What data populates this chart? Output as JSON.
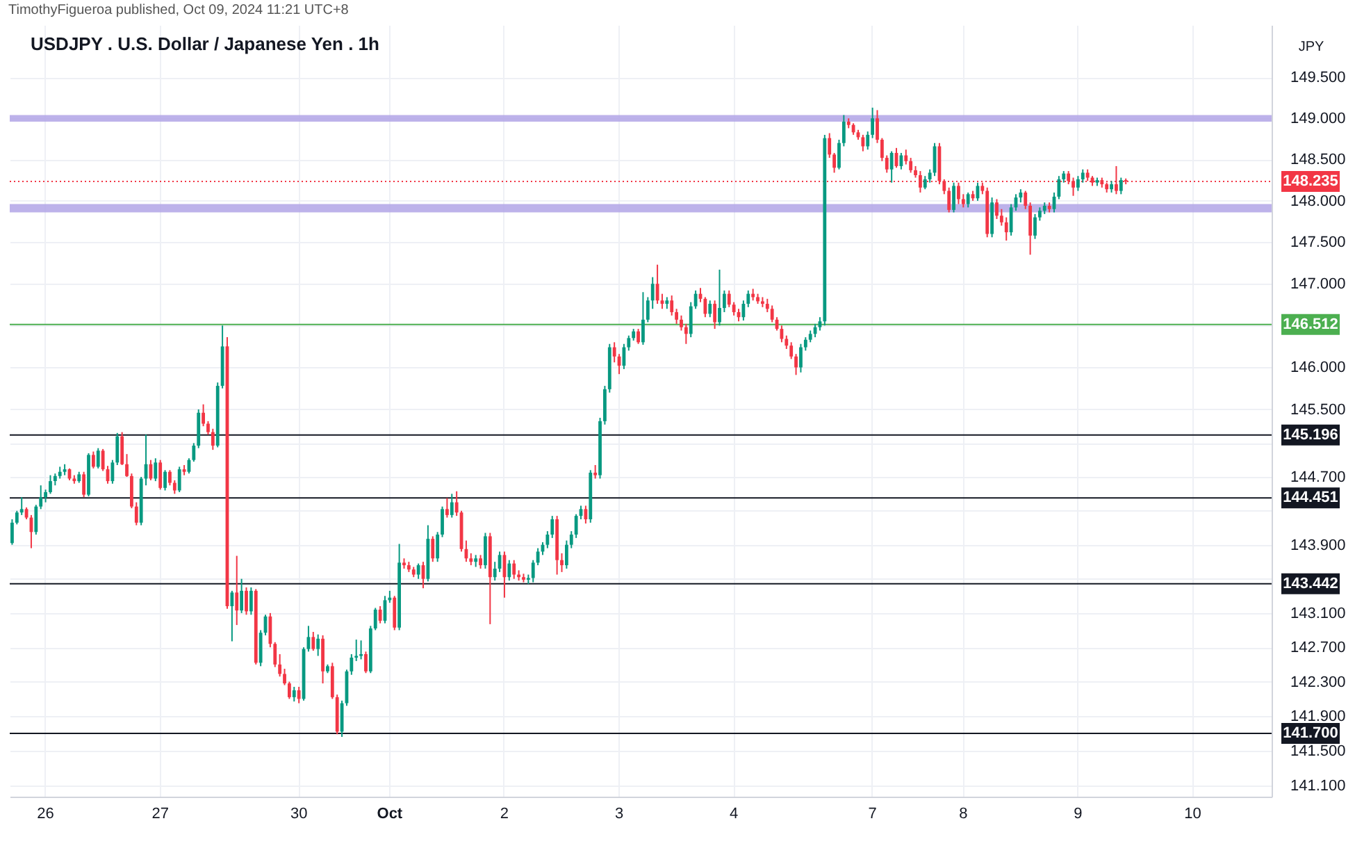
{
  "chart_data": {
    "type": "candlestick",
    "title": "USDJPY . U.S. Dollar / Japanese Yen . 1h",
    "annotations": [
      "TimothyFigueroa published, Oct 09, 2024 11:21 UTC+8"
    ],
    "ylabel": "JPY",
    "categories": [
      null,
      null,
      null,
      null,
      null,
      null,
      null,
      "26",
      null,
      null,
      null,
      null,
      null,
      null,
      null,
      null,
      null,
      null,
      null,
      null,
      null,
      null,
      null,
      null,
      null,
      null,
      null,
      null,
      null,
      null,
      null,
      "27",
      null,
      null,
      null,
      null,
      null,
      null,
      null,
      null,
      null,
      null,
      null,
      null,
      null,
      null,
      null,
      null,
      null,
      null,
      null,
      null,
      null,
      null,
      null,
      null,
      null,
      null,
      null,
      null,
      "30",
      null,
      null,
      null,
      null,
      null,
      null,
      null,
      null,
      null,
      null,
      null,
      null,
      null,
      null,
      null,
      null,
      null,
      null,
      "Oct",
      null,
      null,
      null,
      null,
      null,
      null,
      null,
      null,
      null,
      null,
      null,
      null,
      null,
      null,
      null,
      null,
      null,
      null,
      null,
      null,
      null,
      null,
      null,
      "2",
      null,
      null,
      null,
      null,
      null,
      null,
      null,
      null,
      null,
      null,
      null,
      null,
      null,
      null,
      null,
      null,
      null,
      null,
      null,
      null,
      null,
      null,
      null,
      "3",
      null,
      null,
      null,
      null,
      null,
      null,
      null,
      null,
      null,
      null,
      null,
      null,
      null,
      null,
      null,
      null,
      null,
      null,
      null,
      null,
      null,
      null,
      null,
      "4",
      null,
      null,
      null,
      null,
      null,
      null,
      null,
      null,
      null,
      null,
      null,
      null,
      null,
      null,
      null,
      null,
      null,
      null,
      null,
      null,
      null,
      null,
      null,
      null,
      null,
      null,
      null,
      null,
      "7",
      null,
      null,
      null,
      null,
      null,
      null,
      null,
      null,
      null,
      null,
      null,
      null,
      null,
      null,
      null,
      null,
      null,
      null,
      "8",
      null,
      null,
      null,
      null,
      null,
      null,
      null,
      null,
      null,
      null,
      null,
      null,
      null,
      null,
      null,
      null,
      null,
      null,
      null,
      null,
      null,
      null,
      null,
      "9",
      null,
      null,
      null,
      null,
      null,
      null,
      null,
      null,
      null,
      null,
      null,
      null,
      null,
      null,
      null,
      null,
      null,
      null,
      null,
      null,
      null,
      null,
      null,
      "10",
      null,
      null,
      null,
      null,
      null,
      null,
      null,
      null,
      null,
      null,
      null,
      null,
      null,
      null,
      null,
      null
    ],
    "ohlc": [
      [
        143.92,
        144.2,
        143.9,
        144.16
      ],
      [
        144.16,
        144.3,
        144.14,
        144.28
      ],
      [
        144.28,
        144.46,
        144.25,
        144.32
      ],
      [
        144.32,
        144.34,
        144.2,
        144.22
      ],
      [
        144.22,
        144.25,
        143.86,
        144.05
      ],
      [
        144.05,
        144.37,
        144.02,
        144.35
      ],
      [
        144.35,
        144.6,
        144.32,
        144.46
      ],
      [
        144.46,
        144.55,
        144.4,
        144.52
      ],
      [
        144.52,
        144.72,
        144.5,
        144.65
      ],
      [
        144.65,
        144.74,
        144.6,
        144.71
      ],
      [
        144.71,
        144.82,
        144.68,
        144.76
      ],
      [
        144.76,
        144.85,
        144.72,
        144.79
      ],
      [
        144.79,
        144.8,
        144.66,
        144.68
      ],
      [
        144.68,
        144.72,
        144.62,
        144.65
      ],
      [
        144.65,
        144.76,
        144.63,
        144.73
      ],
      [
        144.73,
        144.76,
        144.46,
        144.49
      ],
      [
        144.49,
        144.98,
        144.47,
        144.96
      ],
      [
        144.96,
        145.0,
        144.8,
        144.82
      ],
      [
        144.82,
        145.04,
        144.8,
        145.01
      ],
      [
        145.01,
        145.03,
        144.77,
        144.79
      ],
      [
        144.79,
        144.83,
        144.62,
        144.65
      ],
      [
        144.65,
        144.9,
        144.62,
        144.87
      ],
      [
        144.87,
        145.22,
        144.84,
        145.18
      ],
      [
        145.18,
        145.23,
        144.84,
        144.85
      ],
      [
        144.85,
        144.97,
        144.7,
        144.71
      ],
      [
        144.71,
        144.74,
        144.33,
        144.35
      ],
      [
        144.35,
        144.4,
        144.13,
        144.16
      ],
      [
        144.16,
        144.7,
        144.13,
        144.68
      ],
      [
        144.68,
        145.2,
        144.6,
        144.85
      ],
      [
        144.85,
        144.9,
        144.66,
        144.68
      ],
      [
        144.68,
        144.92,
        144.65,
        144.87
      ],
      [
        144.87,
        144.9,
        144.55,
        144.57
      ],
      [
        144.57,
        144.78,
        144.54,
        144.76
      ],
      [
        144.76,
        144.78,
        144.6,
        144.63
      ],
      [
        144.63,
        144.66,
        144.5,
        144.54
      ],
      [
        144.54,
        144.82,
        144.52,
        144.79
      ],
      [
        144.79,
        144.84,
        144.72,
        144.76
      ],
      [
        144.76,
        144.92,
        144.74,
        144.9
      ],
      [
        144.9,
        145.1,
        144.88,
        145.07
      ],
      [
        145.07,
        145.5,
        145.04,
        145.46
      ],
      [
        145.46,
        145.56,
        145.3,
        145.33
      ],
      [
        145.33,
        145.36,
        145.2,
        145.23
      ],
      [
        145.23,
        145.27,
        145.02,
        145.07
      ],
      [
        145.07,
        145.82,
        145.05,
        145.78
      ],
      [
        145.78,
        146.5,
        145.75,
        146.25
      ],
      [
        146.25,
        146.36,
        143.15,
        143.18
      ],
      [
        143.18,
        143.36,
        142.77,
        143.34
      ],
      [
        143.34,
        143.77,
        142.96,
        143.13
      ],
      [
        143.13,
        143.5,
        143.1,
        143.36
      ],
      [
        143.36,
        143.4,
        143.08,
        143.12
      ],
      [
        143.12,
        143.4,
        143.08,
        143.36
      ],
      [
        143.36,
        143.38,
        142.5,
        142.52
      ],
      [
        142.52,
        142.9,
        142.48,
        142.87
      ],
      [
        142.87,
        143.08,
        142.84,
        143.06
      ],
      [
        143.06,
        143.1,
        142.7,
        142.74
      ],
      [
        142.74,
        142.76,
        142.47,
        142.5
      ],
      [
        142.5,
        142.62,
        142.36,
        142.39
      ],
      [
        142.39,
        142.45,
        142.26,
        142.28
      ],
      [
        142.28,
        142.3,
        142.1,
        142.12
      ],
      [
        142.12,
        142.24,
        142.07,
        142.2
      ],
      [
        142.2,
        142.24,
        142.05,
        142.1
      ],
      [
        142.1,
        142.7,
        142.08,
        142.68
      ],
      [
        142.68,
        142.95,
        142.65,
        142.82
      ],
      [
        142.82,
        142.88,
        142.66,
        142.68
      ],
      [
        142.68,
        142.85,
        142.6,
        142.8
      ],
      [
        142.8,
        142.84,
        142.28,
        142.42
      ],
      [
        142.42,
        142.5,
        142.4,
        142.48
      ],
      [
        142.48,
        142.52,
        142.1,
        142.12
      ],
      [
        142.12,
        142.15,
        141.69,
        141.72
      ],
      [
        141.72,
        142.08,
        141.66,
        142.05
      ],
      [
        142.05,
        142.44,
        142.02,
        142.42
      ],
      [
        142.42,
        142.62,
        142.38,
        142.58
      ],
      [
        142.58,
        142.79,
        142.54,
        142.6
      ],
      [
        142.6,
        142.78,
        142.56,
        142.62
      ],
      [
        142.62,
        142.65,
        142.4,
        142.42
      ],
      [
        142.42,
        142.95,
        142.4,
        142.92
      ],
      [
        142.92,
        143.16,
        142.9,
        143.14
      ],
      [
        143.14,
        143.18,
        142.98,
        143.01
      ],
      [
        143.01,
        143.3,
        142.98,
        143.25
      ],
      [
        143.25,
        143.36,
        143.22,
        143.28
      ],
      [
        143.28,
        143.3,
        142.9,
        142.93
      ],
      [
        142.93,
        143.91,
        142.9,
        143.69
      ],
      [
        143.69,
        143.74,
        143.62,
        143.66
      ],
      [
        143.66,
        143.7,
        143.58,
        143.61
      ],
      [
        143.61,
        143.64,
        143.52,
        143.55
      ],
      [
        143.55,
        143.68,
        143.5,
        143.66
      ],
      [
        143.66,
        143.7,
        143.39,
        143.5
      ],
      [
        143.5,
        144.13,
        143.47,
        143.97
      ],
      [
        143.97,
        144.0,
        143.7,
        143.74
      ],
      [
        143.74,
        144.05,
        143.7,
        144.02
      ],
      [
        144.02,
        144.35,
        143.99,
        144.32
      ],
      [
        144.32,
        144.45,
        144.22,
        144.25
      ],
      [
        144.25,
        144.5,
        144.22,
        144.4
      ],
      [
        144.4,
        144.53,
        144.24,
        144.28
      ],
      [
        144.28,
        144.3,
        143.82,
        143.85
      ],
      [
        143.85,
        143.95,
        143.7,
        143.74
      ],
      [
        143.74,
        143.8,
        143.66,
        143.7
      ],
      [
        143.7,
        143.78,
        143.64,
        143.74
      ],
      [
        143.74,
        143.78,
        143.62,
        143.66
      ],
      [
        143.66,
        144.04,
        143.62,
        144.0
      ],
      [
        144.0,
        144.04,
        142.97,
        143.52
      ],
      [
        143.52,
        143.7,
        143.48,
        143.62
      ],
      [
        143.62,
        143.82,
        143.58,
        143.78
      ],
      [
        143.78,
        143.82,
        143.28,
        143.52
      ],
      [
        143.52,
        143.72,
        143.48,
        143.68
      ],
      [
        143.68,
        143.72,
        143.5,
        143.55
      ],
      [
        143.55,
        143.6,
        143.48,
        143.52
      ],
      [
        143.52,
        143.56,
        143.46,
        143.49
      ],
      [
        143.49,
        143.55,
        143.44,
        143.51
      ],
      [
        143.51,
        143.72,
        143.46,
        143.69
      ],
      [
        143.69,
        143.86,
        143.66,
        143.82
      ],
      [
        143.82,
        143.93,
        143.78,
        143.9
      ],
      [
        143.9,
        144.06,
        143.86,
        144.02
      ],
      [
        144.02,
        144.24,
        143.98,
        144.2
      ],
      [
        144.2,
        144.24,
        143.55,
        143.72
      ],
      [
        143.72,
        143.8,
        143.58,
        143.66
      ],
      [
        143.66,
        143.95,
        143.62,
        143.9
      ],
      [
        143.9,
        144.06,
        143.86,
        144.02
      ],
      [
        144.02,
        144.26,
        143.98,
        144.24
      ],
      [
        144.24,
        144.36,
        144.2,
        144.32
      ],
      [
        144.32,
        144.36,
        144.15,
        144.2
      ],
      [
        144.2,
        144.78,
        144.16,
        144.75
      ],
      [
        144.75,
        144.84,
        144.68,
        144.72
      ],
      [
        144.72,
        145.4,
        144.68,
        145.36
      ],
      [
        145.36,
        145.78,
        145.32,
        145.74
      ],
      [
        145.74,
        146.28,
        145.7,
        146.24
      ],
      [
        146.24,
        146.3,
        146.06,
        146.13
      ],
      [
        146.13,
        146.16,
        145.92,
        146.02
      ],
      [
        146.02,
        146.28,
        145.98,
        146.24
      ],
      [
        146.24,
        146.38,
        146.2,
        146.35
      ],
      [
        146.35,
        146.46,
        146.32,
        146.43
      ],
      [
        146.43,
        146.46,
        146.28,
        146.3
      ],
      [
        146.3,
        146.9,
        146.27,
        146.57
      ],
      [
        146.57,
        146.84,
        146.54,
        146.8
      ],
      [
        146.8,
        147.08,
        146.7,
        147.0
      ],
      [
        147.0,
        147.23,
        146.76,
        146.8
      ],
      [
        146.8,
        146.88,
        146.7,
        146.76
      ],
      [
        146.76,
        146.84,
        146.7,
        146.8
      ],
      [
        146.8,
        146.86,
        146.62,
        146.66
      ],
      [
        146.66,
        146.7,
        146.52,
        146.57
      ],
      [
        146.57,
        146.62,
        146.44,
        146.48
      ],
      [
        146.48,
        146.52,
        146.28,
        146.4
      ],
      [
        146.4,
        146.78,
        146.36,
        146.73
      ],
      [
        146.73,
        146.92,
        146.7,
        146.88
      ],
      [
        146.88,
        146.95,
        146.78,
        146.82
      ],
      [
        146.82,
        146.84,
        146.6,
        146.64
      ],
      [
        146.64,
        146.8,
        146.6,
        146.76
      ],
      [
        146.76,
        146.8,
        146.46,
        146.54
      ],
      [
        146.54,
        147.17,
        146.5,
        146.71
      ],
      [
        146.71,
        146.92,
        146.66,
        146.88
      ],
      [
        146.88,
        146.92,
        146.72,
        146.75
      ],
      [
        146.75,
        146.78,
        146.62,
        146.66
      ],
      [
        146.66,
        146.7,
        146.55,
        146.6
      ],
      [
        146.6,
        146.8,
        146.56,
        146.76
      ],
      [
        146.76,
        146.92,
        146.72,
        146.88
      ],
      [
        146.88,
        146.94,
        146.8,
        146.84
      ],
      [
        146.84,
        146.88,
        146.76,
        146.79
      ],
      [
        146.79,
        146.84,
        146.72,
        146.76
      ],
      [
        146.76,
        146.82,
        146.66,
        146.7
      ],
      [
        146.7,
        146.74,
        146.54,
        146.57
      ],
      [
        146.57,
        146.6,
        146.44,
        146.46
      ],
      [
        146.46,
        146.5,
        146.3,
        146.34
      ],
      [
        146.34,
        146.38,
        146.22,
        146.26
      ],
      [
        146.26,
        146.3,
        146.1,
        146.13
      ],
      [
        146.13,
        146.16,
        145.91,
        146.0
      ],
      [
        146.0,
        146.28,
        145.94,
        146.24
      ],
      [
        146.24,
        146.36,
        146.2,
        146.33
      ],
      [
        146.33,
        146.44,
        146.3,
        146.4
      ],
      [
        146.4,
        146.52,
        146.36,
        146.48
      ],
      [
        146.48,
        146.6,
        146.44,
        146.55
      ],
      [
        146.55,
        148.8,
        146.5,
        148.76
      ],
      [
        148.76,
        148.82,
        148.52,
        148.56
      ],
      [
        148.56,
        148.58,
        148.34,
        148.4
      ],
      [
        148.4,
        148.74,
        148.38,
        148.7
      ],
      [
        148.7,
        149.04,
        148.66,
        148.96
      ],
      [
        148.96,
        149.0,
        148.88,
        148.92
      ],
      [
        148.92,
        148.94,
        148.8,
        148.83
      ],
      [
        148.83,
        148.86,
        148.74,
        148.77
      ],
      [
        148.77,
        148.8,
        148.6,
        148.66
      ],
      [
        148.66,
        148.84,
        148.62,
        148.8
      ],
      [
        148.8,
        149.13,
        148.76,
        149.0
      ],
      [
        149.0,
        149.1,
        148.7,
        148.74
      ],
      [
        148.74,
        148.76,
        148.48,
        148.52
      ],
      [
        148.52,
        148.55,
        148.34,
        148.38
      ],
      [
        148.38,
        148.6,
        148.22,
        148.58
      ],
      [
        148.58,
        148.64,
        148.4,
        148.42
      ],
      [
        148.42,
        148.58,
        148.38,
        148.55
      ],
      [
        148.55,
        148.62,
        148.44,
        148.48
      ],
      [
        148.48,
        148.52,
        148.34,
        148.37
      ],
      [
        148.37,
        148.42,
        148.28,
        148.31
      ],
      [
        148.31,
        148.36,
        148.1,
        148.16
      ],
      [
        148.16,
        148.3,
        148.14,
        148.26
      ],
      [
        148.26,
        148.38,
        148.22,
        148.34
      ],
      [
        148.34,
        148.7,
        148.3,
        148.66
      ],
      [
        148.66,
        148.7,
        148.2,
        148.24
      ],
      [
        148.24,
        148.26,
        148.08,
        148.12
      ],
      [
        148.12,
        148.16,
        147.86,
        147.89
      ],
      [
        147.89,
        148.22,
        147.86,
        148.18
      ],
      [
        148.18,
        148.22,
        147.96,
        148.02
      ],
      [
        148.02,
        148.08,
        147.92,
        147.96
      ],
      [
        147.96,
        148.1,
        147.92,
        148.08
      ],
      [
        148.08,
        148.12,
        148.0,
        148.03
      ],
      [
        148.03,
        148.22,
        148.0,
        148.18
      ],
      [
        148.18,
        148.22,
        148.08,
        148.12
      ],
      [
        148.12,
        148.16,
        147.56,
        147.6
      ],
      [
        147.6,
        148.04,
        147.56,
        147.98
      ],
      [
        147.98,
        148.02,
        147.78,
        147.82
      ],
      [
        147.82,
        147.9,
        147.7,
        147.74
      ],
      [
        147.74,
        147.8,
        147.52,
        147.62
      ],
      [
        147.62,
        147.96,
        147.58,
        147.92
      ],
      [
        147.92,
        148.08,
        147.88,
        148.04
      ],
      [
        148.04,
        148.14,
        147.98,
        148.1
      ],
      [
        148.1,
        148.12,
        147.9,
        147.94
      ],
      [
        147.94,
        147.98,
        147.35,
        147.58
      ],
      [
        147.58,
        147.84,
        147.54,
        147.8
      ],
      [
        147.8,
        147.92,
        147.76,
        147.88
      ],
      [
        147.88,
        147.98,
        147.84,
        147.94
      ],
      [
        147.94,
        147.98,
        147.86,
        147.9
      ],
      [
        147.9,
        148.1,
        147.86,
        148.05
      ],
      [
        148.05,
        148.3,
        148.02,
        148.26
      ],
      [
        148.26,
        148.36,
        148.22,
        148.33
      ],
      [
        148.33,
        148.36,
        148.2,
        148.24
      ],
      [
        148.24,
        148.28,
        148.06,
        148.16
      ],
      [
        148.16,
        148.3,
        148.12,
        148.26
      ],
      [
        148.26,
        148.38,
        148.22,
        148.34
      ],
      [
        148.34,
        148.38,
        148.24,
        148.28
      ],
      [
        148.28,
        148.3,
        148.18,
        148.22
      ],
      [
        148.22,
        148.28,
        148.18,
        148.25
      ],
      [
        148.25,
        148.28,
        148.16,
        148.2
      ],
      [
        148.2,
        148.22,
        148.1,
        148.14
      ],
      [
        148.14,
        148.24,
        148.1,
        148.2
      ],
      [
        148.2,
        148.42,
        148.08,
        148.12
      ],
      [
        148.12,
        148.28,
        148.08,
        148.25
      ],
      [
        148.25,
        148.27,
        148.2,
        148.235
      ],
      null,
      null,
      null,
      null,
      null,
      null,
      null,
      null,
      null,
      null,
      null,
      null,
      null,
      null,
      null,
      null,
      null,
      null,
      null,
      null,
      null,
      null,
      null,
      null,
      null,
      null,
      null,
      null,
      null,
      null
    ],
    "colors": [
      "#089981",
      "#089981",
      "#089981",
      "#f23645",
      "#f23645",
      "#089981",
      "#089981",
      "#089981",
      "#089981",
      "#089981",
      "#089981",
      "#089981",
      "#f23645",
      "#f23645",
      "#089981",
      "#f23645",
      "#089981",
      "#f23645",
      "#089981",
      "#f23645",
      "#f23645",
      "#089981",
      "#089981",
      "#f23645",
      "#f23645",
      "#f23645",
      "#f23645",
      "#089981",
      "#089981",
      "#f23645",
      "#089981",
      "#f23645",
      "#089981",
      "#f23645",
      "#f23645",
      "#089981",
      "#f23645",
      "#089981",
      "#089981",
      "#089981",
      "#f23645",
      "#f23645",
      "#f23645",
      "#089981",
      "#089981",
      "#f23645",
      "#089981",
      "#f23645",
      "#089981",
      "#f23645",
      "#089981",
      "#f23645",
      "#089981",
      "#089981",
      "#f23645",
      "#f23645",
      "#f23645",
      "#f23645",
      "#f23645",
      "#089981",
      "#f23645",
      "#089981",
      "#089981",
      "#f23645",
      "#089981",
      "#f23645",
      "#089981",
      "#f23645",
      "#f23645",
      "#089981",
      "#089981",
      "#089981",
      "#089981",
      "#089981",
      "#f23645",
      "#089981",
      "#089981",
      "#f23645",
      "#089981",
      "#089981",
      "#f23645",
      "#089981",
      "#f23645",
      "#f23645",
      "#f23645",
      "#089981",
      "#f23645",
      "#089981",
      "#f23645",
      "#089981",
      "#089981",
      "#f23645",
      "#089981",
      "#f23645",
      "#f23645",
      "#f23645",
      "#f23645",
      "#089981",
      "#f23645",
      "#089981",
      "#f23645",
      "#089981",
      "#089981",
      "#f23645",
      "#089981",
      "#f23645",
      "#f23645",
      "#f23645",
      "#089981",
      "#089981",
      "#089981",
      "#089981",
      "#089981",
      "#089981",
      "#f23645",
      "#f23645",
      "#089981",
      "#089981",
      "#089981",
      "#089981",
      "#f23645",
      "#089981",
      "#f23645",
      "#089981",
      "#089981",
      "#089981",
      "#f23645",
      "#f23645",
      "#089981",
      "#089981",
      "#089981",
      "#f23645",
      "#089981",
      "#089981",
      "#089981",
      "#f23645",
      "#f23645",
      "#089981",
      "#f23645",
      "#f23645",
      "#f23645",
      "#f23645",
      "#089981",
      "#089981",
      "#f23645",
      "#f23645",
      "#089981",
      "#f23645",
      "#089981",
      "#089981",
      "#f23645",
      "#f23645",
      "#f23645",
      "#089981",
      "#089981",
      "#f23645",
      "#f23645",
      "#f23645",
      "#f23645",
      "#f23645",
      "#f23645",
      "#f23645",
      "#f23645",
      "#f23645",
      "#f23645",
      "#089981",
      "#089981",
      "#089981",
      "#089981",
      "#089981",
      "#089981",
      "#f23645",
      "#f23645",
      "#089981",
      "#089981",
      "#f23645",
      "#f23645",
      "#f23645",
      "#f23645",
      "#089981",
      "#089981",
      "#f23645",
      "#f23645",
      "#f23645",
      "#089981",
      "#f23645",
      "#089981",
      "#f23645",
      "#f23645",
      "#f23645",
      "#f23645",
      "#089981",
      "#089981",
      "#089981",
      "#f23645",
      "#f23645",
      "#f23645",
      "#089981",
      "#f23645",
      "#f23645",
      "#089981",
      "#f23645",
      "#089981",
      "#f23645",
      "#f23645",
      "#089981",
      "#f23645",
      "#f23645",
      "#f23645",
      "#089981",
      "#089981",
      "#089981",
      "#f23645",
      "#f23645",
      "#089981",
      "#089981",
      "#089981",
      "#f23645",
      "#089981",
      "#089981",
      "#089981",
      "#f23645",
      "#f23645",
      "#089981",
      "#089981",
      "#f23645",
      "#f23645",
      "#089981",
      "#f23645",
      "#f23645",
      "#089981",
      "#f23645",
      "#089981",
      "#f23645",
      null,
      null,
      null,
      null,
      null,
      null,
      null,
      null,
      null,
      null,
      null,
      null,
      null,
      null,
      null,
      null,
      null,
      null,
      null,
      null,
      null,
      null,
      null,
      null,
      null,
      null,
      null,
      null,
      null,
      null
    ],
    "ylim": [
      140.97,
      150.14
    ],
    "yticks": [
      {
        "value": 141.1,
        "label": "141.100"
      },
      {
        "value": 141.5,
        "label": "141.500"
      },
      {
        "value": 141.9,
        "label": "141.900"
      },
      {
        "value": 142.3,
        "label": "142.300"
      },
      {
        "value": 142.7,
        "label": "142.700"
      },
      {
        "value": 143.1,
        "label": "143.100"
      },
      {
        "value": 143.5,
        "label": null
      },
      {
        "value": 143.9,
        "label": "143.900"
      },
      {
        "value": 144.3,
        "label": null
      },
      {
        "value": 144.7,
        "label": "144.700"
      },
      {
        "value": 145.1,
        "label": null
      },
      {
        "value": 145.5,
        "label": "145.500"
      },
      {
        "value": 146.0,
        "label": "146.000"
      },
      {
        "value": 146.5,
        "label": null
      },
      {
        "value": 147.0,
        "label": "147.000"
      },
      {
        "value": 147.5,
        "label": "147.500"
      },
      {
        "value": 148.0,
        "label": "148.000"
      },
      {
        "value": 148.5,
        "label": "148.500"
      },
      {
        "value": 149.0,
        "label": "149.000"
      },
      {
        "value": 149.5,
        "label": "149.500"
      }
    ],
    "log": true,
    "grid": true,
    "ref_lines": [
      {
        "axis": "y",
        "value": 148.235,
        "label": "148.235",
        "color": "#f23645",
        "line_style": "dotted"
      },
      {
        "axis": "y",
        "value": 146.512,
        "label": "146.512",
        "color": "#4caf50"
      },
      {
        "axis": "y",
        "value": 145.196,
        "label": "145.196",
        "color": "#131722"
      },
      {
        "axis": "y",
        "value": 144.451,
        "label": "144.451",
        "color": "#131722"
      },
      {
        "axis": "y",
        "value": 143.442,
        "label": "143.442",
        "color": "#131722"
      },
      {
        "axis": "y",
        "value": 141.7,
        "label": "141.700",
        "color": "#131722"
      }
    ],
    "bands": [
      {
        "axis": "y",
        "from": 148.96,
        "to": 149.04,
        "color": "#b2a4e6"
      },
      {
        "axis": "y",
        "from": 147.86,
        "to": 147.96,
        "color": "#b2a4e6"
      }
    ]
  }
}
